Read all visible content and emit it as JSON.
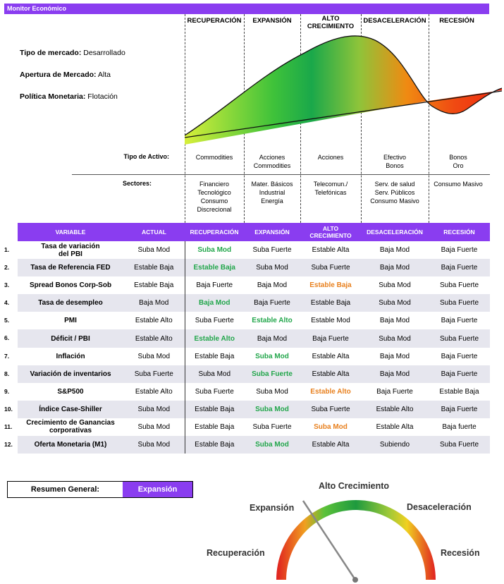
{
  "header": {
    "title": "Monitor Económico"
  },
  "market": [
    {
      "label": "Tipo de mercado:",
      "value": "Desarrollado"
    },
    {
      "label": "Apertura de Mercado:",
      "value": "Alta"
    },
    {
      "label": "Política Monetaria:",
      "value": "Flotación"
    }
  ],
  "phases": [
    "RECUPERACIÓN",
    "EXPANSIÓN",
    "ALTO CRECIMIENTO",
    "DESACELERACIÓN",
    "RECESIÓN"
  ],
  "asset_row": {
    "label": "Tipo de Activo:",
    "cells": [
      "Commodities",
      "Acciones\nCommodities",
      "Acciones",
      "Efectivo\nBonos",
      "Bonos\nOro"
    ]
  },
  "sector_row": {
    "label": "Sectores:",
    "cells": [
      "Financiero\nTecnológico\nConsumo\nDiscrecional",
      "Mater. Básicos\nIndustrial\nEnergía",
      "Telecomun./\nTelefónicas",
      "Serv. de salud\nServ. Públicos\nConsumo Masivo",
      "Consumo Masivo"
    ]
  },
  "table": {
    "headers": [
      "VARIABLE",
      "ACTUAL",
      "RECUPERACIÓN",
      "EXPANSIÓN",
      "ALTO\nCRECIMIENTO",
      "DESACELERACIÓN",
      "RECESIÓN"
    ],
    "rows": [
      {
        "num": "1.",
        "variable": "Tasa de variación\ndel PBI",
        "actual": "Suba Mod",
        "cells": [
          "Suba Mod",
          "Suba Fuerte",
          "Estable Alta",
          "Baja Mod",
          "Baja Fuerte"
        ],
        "highlight": 0,
        "hl_color": "g"
      },
      {
        "num": "2.",
        "variable": "Tasa de Referencia FED",
        "actual": "Estable Baja",
        "cells": [
          "Estable Baja",
          "Suba Mod",
          "Suba Fuerte",
          "Baja Mod",
          "Baja Fuerte"
        ],
        "highlight": 0,
        "hl_color": "g"
      },
      {
        "num": "3.",
        "variable": "Spread Bonos Corp-Sob",
        "actual": "Estable Baja",
        "cells": [
          "Baja Fuerte",
          "Baja Mod",
          "Estable Baja",
          "Suba Mod",
          "Suba Fuerte"
        ],
        "highlight": 2,
        "hl_color": "o"
      },
      {
        "num": "4.",
        "variable": "Tasa de desempleo",
        "actual": "Baja Mod",
        "cells": [
          "Baja Mod",
          "Baja Fuerte",
          "Estable Baja",
          "Suba Mod",
          "Suba Fuerte"
        ],
        "highlight": 0,
        "hl_color": "g"
      },
      {
        "num": "5.",
        "variable": "PMI",
        "actual": "Estable Alto",
        "cells": [
          "Suba Fuerte",
          "Estable Alto",
          "Estable Mod",
          "Baja Mod",
          "Baja Fuerte"
        ],
        "highlight": 1,
        "hl_color": "g"
      },
      {
        "num": "6.",
        "variable": "Déficit / PBI",
        "actual": "Estable Alto",
        "cells": [
          "Estable Alto",
          "Baja Mod",
          "Baja Fuerte",
          "Suba Mod",
          "Suba Fuerte"
        ],
        "highlight": 0,
        "hl_color": "g"
      },
      {
        "num": "7.",
        "variable": "Inflación",
        "actual": "Suba Mod",
        "cells": [
          "Estable Baja",
          "Suba Mod",
          "Estable Alta",
          "Baja Mod",
          "Baja Fuerte"
        ],
        "highlight": 1,
        "hl_color": "g"
      },
      {
        "num": "8.",
        "variable": "Variación de inventarios",
        "actual": "Suba Fuerte",
        "cells": [
          "Suba Mod",
          "Suba Fuerte",
          "Estable Alta",
          "Baja Mod",
          "Baja Fuerte"
        ],
        "highlight": 1,
        "hl_color": "g"
      },
      {
        "num": "9.",
        "variable": "S&P500",
        "actual": "Estable Alto",
        "cells": [
          "Suba Fuerte",
          "Suba Mod",
          "Estable Alto",
          "Baja Fuerte",
          "Estable Baja"
        ],
        "highlight": 2,
        "hl_color": "o"
      },
      {
        "num": "10.",
        "variable": "Índice Case-Shiller",
        "actual": "Suba Mod",
        "cells": [
          "Estable Baja",
          "Suba Mod",
          "Suba Fuerte",
          "Estable Alto",
          "Baja Fuerte"
        ],
        "highlight": 1,
        "hl_color": "g"
      },
      {
        "num": "11.",
        "variable": "Crecimiento de Ganancias\ncorporativas",
        "actual": "Suba Mod",
        "cells": [
          "Estable Baja",
          "Suba Fuerte",
          "Suba Mod",
          "Estable Alta",
          "Baja fuerte"
        ],
        "highlight": 2,
        "hl_color": "o"
      },
      {
        "num": "12.",
        "variable": "Oferta Monetaria (M1)",
        "actual": "Suba Mod",
        "cells": [
          "Estable Baja",
          "Suba Mod",
          "Estable Alta",
          "Subiendo",
          "Suba Fuerte"
        ],
        "highlight": 1,
        "hl_color": "g"
      }
    ]
  },
  "summary": {
    "label": "Resumen General:",
    "value": "Expansión"
  },
  "gauge": {
    "labels": [
      "Recuperación",
      "Expansión",
      "Alto Crecimiento",
      "Desaceleración",
      "Recesión"
    ],
    "current": "Expansión"
  },
  "colors": {
    "accent": "#8a3df0",
    "green": "#22a64b",
    "orange": "#e8801e"
  }
}
